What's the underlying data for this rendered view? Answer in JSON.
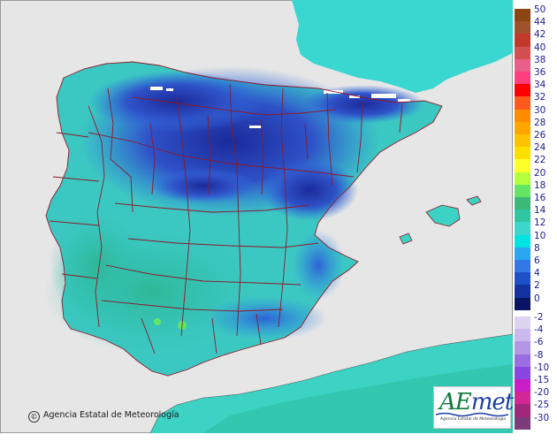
{
  "map": {
    "copyright": "Agencia Estatal de Meteorología",
    "copyright_symbol": "©",
    "logo": {
      "text_a": "AE",
      "text_b": "met",
      "subtitle": "Agencia Estatal de Meteorología"
    }
  },
  "legend": {
    "positive": [
      {
        "label": "50",
        "color": "#8b4513"
      },
      {
        "label": "44",
        "color": "#a0522d"
      },
      {
        "label": "42",
        "color": "#c0392b"
      },
      {
        "label": "40",
        "color": "#d35050"
      },
      {
        "label": "38",
        "color": "#e8608a"
      },
      {
        "label": "36",
        "color": "#ff3e7f"
      },
      {
        "label": "34",
        "color": "#ff0000"
      },
      {
        "label": "32",
        "color": "#ff5a1e"
      },
      {
        "label": "30",
        "color": "#ff8c00"
      },
      {
        "label": "28",
        "color": "#ffa500"
      },
      {
        "label": "26",
        "color": "#ffc200"
      },
      {
        "label": "24",
        "color": "#ffdf00"
      },
      {
        "label": "22",
        "color": "#ffff2a"
      },
      {
        "label": "20",
        "color": "#b4ff3c"
      },
      {
        "label": "18",
        "color": "#64e664"
      },
      {
        "label": "16",
        "color": "#3cb878"
      },
      {
        "label": "14",
        "color": "#30c6a2"
      },
      {
        "label": "12",
        "color": "#3cd6cc"
      },
      {
        "label": "10",
        "color": "#00e3e3"
      },
      {
        "label": "8",
        "color": "#2aa6f0"
      },
      {
        "label": "6",
        "color": "#3278e6"
      },
      {
        "label": "4",
        "color": "#1e50c8"
      },
      {
        "label": "2",
        "color": "#1432a0"
      },
      {
        "label": "0",
        "color": "#0a1464"
      }
    ],
    "negative": [
      {
        "label": "-2",
        "color": "#ddd4f2"
      },
      {
        "label": "-4",
        "color": "#cbb8ec"
      },
      {
        "label": "-6",
        "color": "#b596e4"
      },
      {
        "label": "-8",
        "color": "#9a6ee0"
      },
      {
        "label": "-10",
        "color": "#8a46e0"
      },
      {
        "label": "-15",
        "color": "#c81ec8"
      },
      {
        "label": "-20",
        "color": "#d22896"
      },
      {
        "label": "-25",
        "color": "#a0287a"
      },
      {
        "label": "-30",
        "color": "#7c3c7c"
      }
    ]
  }
}
